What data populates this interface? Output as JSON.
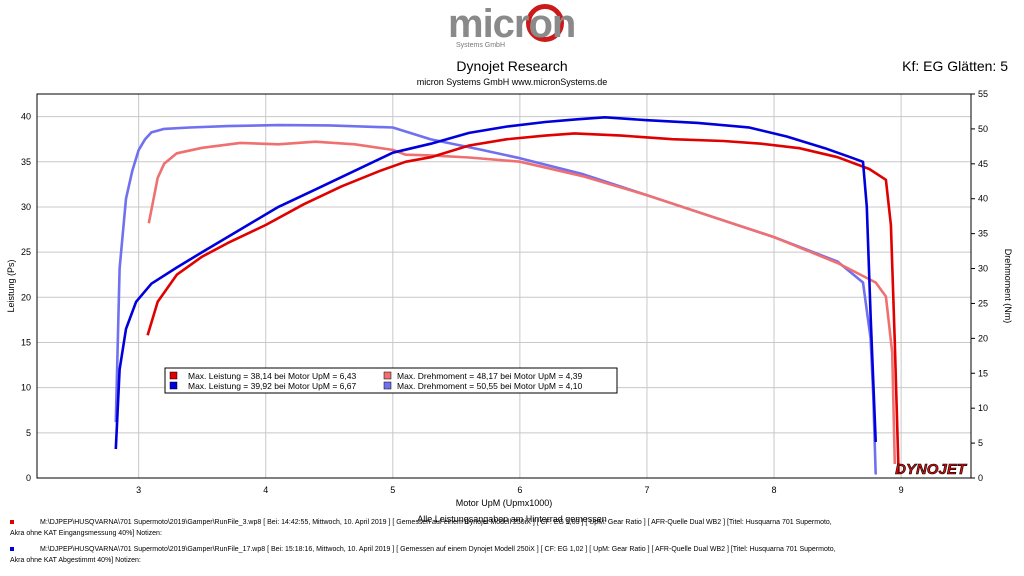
{
  "header": {
    "logo_text": "micron",
    "logo_sub": "Systems GmbH",
    "title": "Dynojet Research",
    "subtitle": "micron Systems GmbH  www.micronSystems.de",
    "smoothing": "Kf: EG Glätten: 5"
  },
  "colors": {
    "run3_power": "#e00000",
    "run17_power": "#0000dd",
    "run3_torque": "#f07070",
    "run17_torque": "#7070f0"
  },
  "chart_data": {
    "type": "line",
    "title": "Dynojet Research",
    "xlabel": "Motor UpM (Upmx1000)",
    "ylabel_left": "Leistung (Ps)",
    "ylabel_right": "Drehmoment (Nm)",
    "xlim": [
      2.2,
      9.55
    ],
    "ylim_left": [
      0,
      42.5
    ],
    "ylim_right": [
      0,
      55
    ],
    "x_ticks": [
      "3",
      "4",
      "5",
      "6",
      "7",
      "8",
      "9"
    ],
    "y_left_ticks": [
      "0",
      "5",
      "10",
      "15",
      "20",
      "25",
      "30",
      "35",
      "40"
    ],
    "y_right_ticks": [
      "0",
      "5",
      "10",
      "15",
      "20",
      "25",
      "30",
      "35",
      "40",
      "45",
      "50",
      "55"
    ],
    "grid": true,
    "footer_note": "Alle Leistungsangaben am Hinterrad gemessen",
    "brand": "DYNOJET",
    "series": [
      {
        "name": "Max. Leistung = 38,14 bei Motor UpM = 6,43",
        "axis": "left",
        "color_key": "run3_power",
        "x": [
          3.07,
          3.15,
          3.3,
          3.5,
          3.7,
          4.0,
          4.3,
          4.6,
          4.9,
          5.1,
          5.3,
          5.6,
          5.9,
          6.2,
          6.43,
          6.8,
          7.2,
          7.6,
          7.9,
          8.2,
          8.5,
          8.75,
          8.88,
          8.92,
          8.95,
          8.98
        ],
        "y": [
          15.8,
          19.5,
          22.5,
          24.5,
          26.0,
          28.0,
          30.3,
          32.3,
          34.0,
          35.0,
          35.5,
          36.8,
          37.5,
          37.9,
          38.14,
          37.9,
          37.5,
          37.3,
          37.0,
          36.5,
          35.5,
          34.2,
          33.0,
          28.0,
          15.0,
          0.5
        ]
      },
      {
        "name": "Max. Leistung = 39,92 bei Motor UpM = 6,67",
        "axis": "left",
        "color_key": "run17_power",
        "x": [
          2.82,
          2.85,
          2.9,
          2.98,
          3.1,
          3.3,
          3.5,
          3.8,
          4.1,
          4.4,
          4.7,
          5.0,
          5.3,
          5.6,
          5.9,
          6.2,
          6.45,
          6.67,
          7.0,
          7.4,
          7.8,
          8.1,
          8.4,
          8.6,
          8.7,
          8.73,
          8.76,
          8.8
        ],
        "y": [
          3.2,
          12.0,
          16.5,
          19.5,
          21.5,
          23.3,
          25.0,
          27.5,
          30.0,
          32.0,
          34.0,
          36.0,
          37.0,
          38.2,
          38.9,
          39.4,
          39.7,
          39.92,
          39.6,
          39.3,
          38.8,
          37.8,
          36.5,
          35.5,
          35.0,
          30.0,
          18.0,
          4.0
        ]
      },
      {
        "name": "Max. Drehmoment = 48,17 bei Motor UpM = 4,39",
        "axis": "right",
        "color_key": "run3_torque",
        "x": [
          3.08,
          3.15,
          3.2,
          3.3,
          3.5,
          3.8,
          4.1,
          4.39,
          4.7,
          5.0,
          5.1,
          5.3,
          5.6,
          6.0,
          6.5,
          7.0,
          7.5,
          8.0,
          8.5,
          8.8,
          8.88,
          8.93,
          8.95
        ],
        "y": [
          36.5,
          43.0,
          45.0,
          46.5,
          47.3,
          48.0,
          47.8,
          48.17,
          47.8,
          47.0,
          46.3,
          46.2,
          45.9,
          45.3,
          43.2,
          40.5,
          37.5,
          34.5,
          30.8,
          28.0,
          26.0,
          18.0,
          2.0
        ]
      },
      {
        "name": "Max. Drehmoment = 50,55 bei Motor UpM = 4,10",
        "axis": "right",
        "color_key": "run17_torque",
        "x": [
          2.82,
          2.85,
          2.9,
          2.95,
          3.0,
          3.05,
          3.1,
          3.2,
          3.4,
          3.7,
          4.1,
          4.5,
          5.0,
          5.3,
          5.7,
          6.0,
          6.5,
          7.0,
          7.5,
          8.0,
          8.5,
          8.7,
          8.76,
          8.78,
          8.8
        ],
        "y": [
          8.0,
          30.0,
          40.0,
          44.0,
          47.0,
          48.5,
          49.5,
          50.0,
          50.2,
          50.4,
          50.55,
          50.5,
          50.2,
          48.5,
          47.0,
          45.8,
          43.5,
          40.5,
          37.5,
          34.5,
          31.0,
          28.0,
          20.0,
          12.0,
          0.5
        ]
      }
    ]
  },
  "footer": {
    "line1": "M:\\DJPEP\\HUSQVARNA\\701 Supermoto\\2019\\Gamper\\RunFile_3.wp8  [ Bei: 14:42:55, Mittwoch, 10. April 2019 ] [ Gemessen auf einem Dynojet Modell 250iX ] [ CF: EG 1,03 ] [ UpM: Gear Ratio ] [ AFR-Quelle  Dual WB2 ] [Titel: Husquarna 701 Supermoto,",
    "line1b": "Akra ohne KAT Eingangsmessung 40%]  Notizen:",
    "line2": "M:\\DJPEP\\HUSQVARNA\\701 Supermoto\\2019\\Gamper\\RunFile_17.wp8  [ Bei: 15:18:16, Mittwoch, 10. April 2019 ] [ Gemessen auf einem Dynojet Modell 250iX ] [ CF: EG 1,02 ] [ UpM: Gear Ratio ] [ AFR-Quelle  Dual WB2 ] [Titel: Husquarna 701 Supermoto,",
    "line2b": "Akra ohne KAT Abgestimmt 40%]  Notizen:"
  }
}
